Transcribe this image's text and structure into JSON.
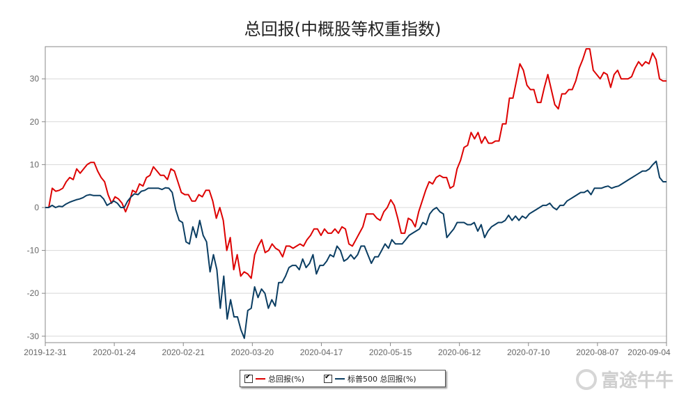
{
  "chart_data": {
    "type": "line",
    "title": "总回报(中概股等权重指数)",
    "x_ticks": [
      "2019-12-31",
      "2020-01-24",
      "2020-02-21",
      "2020-03-20",
      "2020-04-17",
      "2020-05-15",
      "2020-06-12",
      "2020-07-10",
      "2020-08-07",
      "2020-09-04"
    ],
    "y_ticks": [
      30,
      20,
      10,
      0,
      -10,
      -20,
      -30
    ],
    "ylim": [
      -31.5,
      37.5
    ],
    "grid": true,
    "legend_position": "bottom-center",
    "series": [
      {
        "name": "总回报(%)",
        "color": "#dd0000",
        "values": [
          0,
          0,
          4.5,
          3.8,
          4,
          4.5,
          6,
          7,
          6.5,
          9,
          8,
          9,
          10,
          10.5,
          10.5,
          8.5,
          7,
          6,
          3,
          1,
          2.5,
          2,
          1,
          -1,
          1,
          4,
          3.5,
          5.5,
          5,
          7,
          7.5,
          9.5,
          8.5,
          7.5,
          7.5,
          6.5,
          9,
          8.5,
          6,
          3.5,
          3,
          3,
          1.5,
          1.5,
          3,
          2.5,
          4,
          4,
          1.5,
          -2.5,
          0,
          -3,
          -10,
          -7,
          -14.5,
          -11,
          -16,
          -15,
          -15.5,
          -16.5,
          -11,
          -9,
          -7.5,
          -10.5,
          -10,
          -8.5,
          -9.5,
          -10,
          -11.5,
          -9,
          -9,
          -9.5,
          -9,
          -8.5,
          -9,
          -7.5,
          -6.5,
          -5,
          -5,
          -6.5,
          -5,
          -6,
          -6,
          -5,
          -6,
          -4.5,
          -5,
          -8.5,
          -9,
          -7.5,
          -6,
          -4.5,
          -1.5,
          -1.5,
          -1.5,
          -2.5,
          -3,
          -1,
          0,
          1.8,
          0.5,
          -2.5,
          -6,
          -6,
          -2.5,
          -3,
          -4.5,
          -1,
          1.5,
          4,
          6,
          5.5,
          7,
          7.5,
          7,
          7,
          4.5,
          5,
          9,
          11,
          14,
          14.5,
          17.5,
          16,
          17.5,
          15,
          16.5,
          15,
          15,
          15.5,
          15.5,
          19.5,
          19.5,
          25.5,
          25.5,
          29.5,
          33.5,
          32,
          28.5,
          27.5,
          27.5,
          24.5,
          24.5,
          28,
          31,
          27.5,
          24,
          23,
          26.5,
          26.5,
          27.5,
          27.5,
          29.5,
          32.5,
          34.5,
          37,
          37,
          32,
          31,
          30,
          31.5,
          31,
          28,
          31,
          32,
          30,
          30,
          30,
          30.5,
          32.5,
          34,
          33,
          34,
          33.5,
          36,
          34.5,
          30,
          29.5,
          29.5
        ]
      },
      {
        "name": "标普500 总回报(%)",
        "color": "#0a3d62",
        "values": [
          0,
          0,
          0.5,
          0,
          0.3,
          0.2,
          0.8,
          1.2,
          1.5,
          1.8,
          2,
          2.3,
          2.8,
          3,
          2.8,
          2.8,
          2.8,
          2,
          0.5,
          1,
          1.5,
          1,
          0,
          0,
          1.5,
          2.5,
          3.2,
          3,
          3.8,
          4,
          4.5,
          4.5,
          4.5,
          4.5,
          4.2,
          4.6,
          4.5,
          3.5,
          -0.5,
          -3,
          -3.5,
          -8,
          -8.5,
          -4.5,
          -7,
          -3,
          -6.5,
          -8,
          -15,
          -11,
          -14.5,
          -23.5,
          -16,
          -26,
          -21.5,
          -25.5,
          -25.5,
          -28.5,
          -30.5,
          -24,
          -23.5,
          -18.5,
          -21,
          -19,
          -20,
          -23.5,
          -21.5,
          -23,
          -17.5,
          -17.5,
          -16,
          -14,
          -13.5,
          -13.5,
          -14.5,
          -12,
          -14,
          -13,
          -11,
          -15.5,
          -13.5,
          -13.5,
          -12.5,
          -11,
          -11.5,
          -9,
          -10,
          -12.5,
          -12,
          -11,
          -12,
          -11,
          -9,
          -9,
          -11,
          -13,
          -11.5,
          -11.5,
          -10,
          -8.5,
          -9.5,
          -7.5,
          -8.5,
          -8.5,
          -8.5,
          -7.5,
          -6.5,
          -6,
          -5.5,
          -5,
          -3.5,
          -4,
          -1.5,
          -0.5,
          0,
          -1,
          -1.5,
          -7,
          -6,
          -5,
          -3.5,
          -3.5,
          -3.5,
          -4,
          -4,
          -3.5,
          -5.5,
          -4,
          -7,
          -5.5,
          -4.5,
          -4,
          -3.5,
          -3.5,
          -3,
          -1.8,
          -3,
          -2,
          -3,
          -2,
          -2.5,
          -1.5,
          -1,
          -0.5,
          0,
          0.5,
          0.5,
          1,
          0,
          -0.5,
          0.5,
          0.5,
          1.5,
          2,
          2.5,
          3,
          3.5,
          3.5,
          4,
          3,
          4.5,
          4.5,
          4.5,
          4.8,
          5,
          4.5,
          4.8,
          5,
          5.5,
          6,
          6.5,
          7,
          7.5,
          8,
          8.5,
          8.5,
          9,
          10,
          10.8,
          7,
          6,
          6
        ]
      }
    ]
  },
  "legend": {
    "item1": "总回报(%)",
    "item2": "标普500 总回报(%)"
  },
  "watermark": {
    "text": "富途牛牛"
  }
}
